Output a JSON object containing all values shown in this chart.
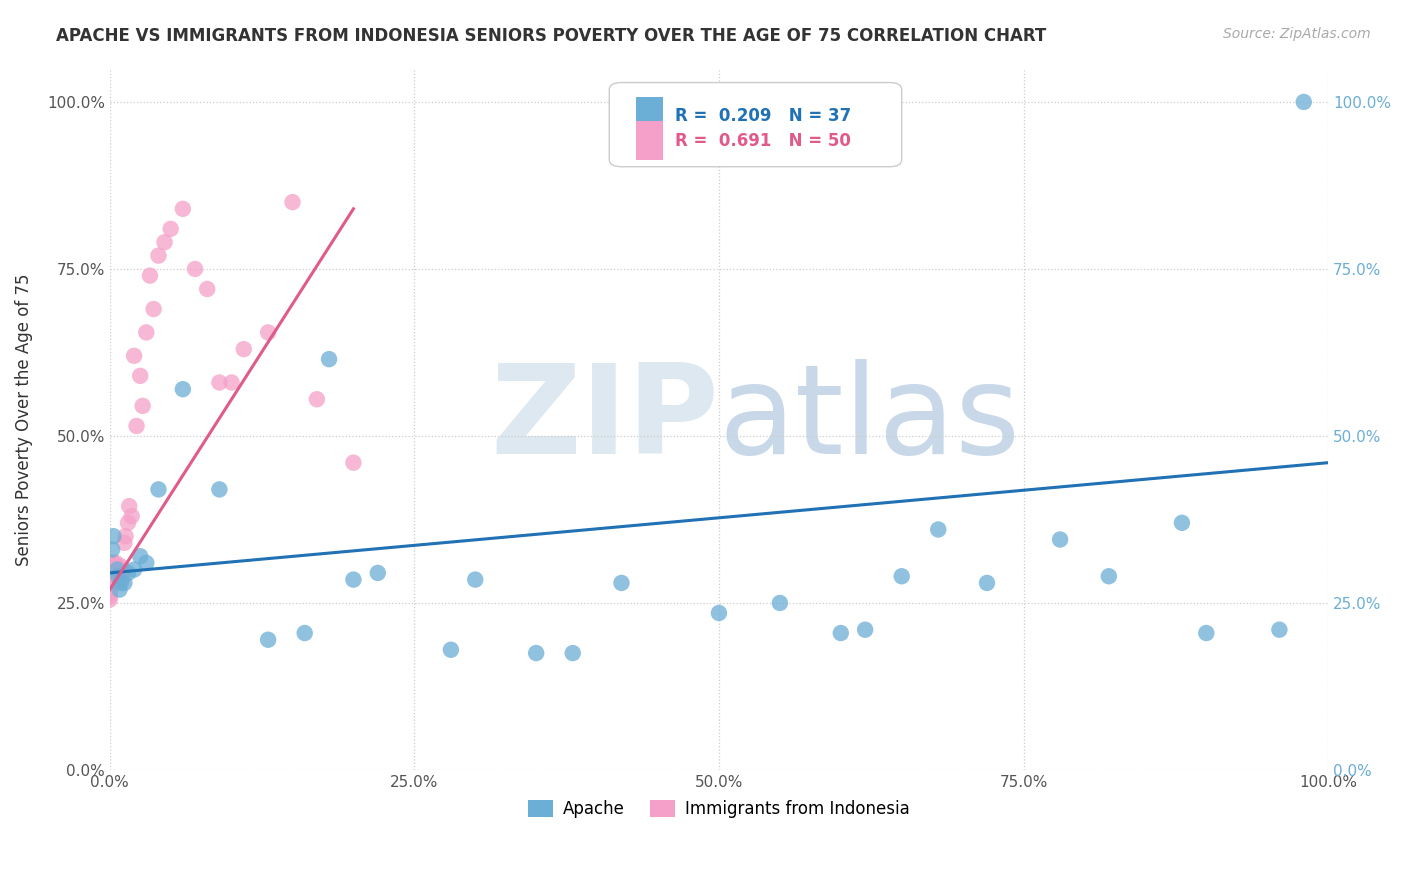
{
  "title": "APACHE VS IMMIGRANTS FROM INDONESIA SENIORS POVERTY OVER THE AGE OF 75 CORRELATION CHART",
  "source": "Source: ZipAtlas.com",
  "ylabel": "Seniors Poverty Over the Age of 75",
  "background_color": "#ffffff",
  "watermark_zip": "ZIP",
  "watermark_atlas": "atlas",
  "legend_apache_R": 0.209,
  "legend_apache_N": 37,
  "legend_indonesia_R": 0.691,
  "legend_indonesia_N": 50,
  "apache_color": "#6baed6",
  "indonesia_color": "#f4a0c8",
  "apache_line_color": "#2171b5",
  "indonesia_line_color": "#e05a8a",
  "grid_color": "#cccccc",
  "apache_points_x": [
    0.002,
    0.003,
    0.006,
    0.007,
    0.008,
    0.009,
    0.012,
    0.015,
    0.02,
    0.025,
    0.03,
    0.04,
    0.06,
    0.09,
    0.13,
    0.16,
    0.18,
    0.2,
    0.22,
    0.28,
    0.3,
    0.35,
    0.38,
    0.42,
    0.5,
    0.55,
    0.6,
    0.62,
    0.65,
    0.68,
    0.72,
    0.78,
    0.82,
    0.88,
    0.9,
    0.96,
    0.98
  ],
  "apache_points_y": [
    0.33,
    0.35,
    0.3,
    0.29,
    0.27,
    0.28,
    0.28,
    0.295,
    0.3,
    0.32,
    0.31,
    0.42,
    0.57,
    0.42,
    0.195,
    0.205,
    0.615,
    0.285,
    0.295,
    0.18,
    0.285,
    0.175,
    0.175,
    0.28,
    0.235,
    0.25,
    0.205,
    0.21,
    0.29,
    0.36,
    0.28,
    0.345,
    0.29,
    0.37,
    0.205,
    0.21,
    1.0
  ],
  "indonesia_points_x": [
    0.0,
    0.0,
    0.0,
    0.0,
    0.0,
    0.0,
    0.0,
    0.0,
    0.0,
    0.0,
    0.001,
    0.001,
    0.001,
    0.002,
    0.002,
    0.003,
    0.003,
    0.004,
    0.005,
    0.006,
    0.007,
    0.008,
    0.009,
    0.01,
    0.011,
    0.012,
    0.013,
    0.015,
    0.016,
    0.018,
    0.02,
    0.022,
    0.025,
    0.027,
    0.03,
    0.033,
    0.036,
    0.04,
    0.045,
    0.05,
    0.06,
    0.07,
    0.08,
    0.09,
    0.1,
    0.11,
    0.13,
    0.15,
    0.17,
    0.2
  ],
  "indonesia_points_y": [
    0.28,
    0.29,
    0.3,
    0.31,
    0.295,
    0.285,
    0.27,
    0.265,
    0.26,
    0.255,
    0.295,
    0.31,
    0.29,
    0.3,
    0.285,
    0.31,
    0.295,
    0.305,
    0.31,
    0.285,
    0.295,
    0.3,
    0.305,
    0.285,
    0.3,
    0.34,
    0.35,
    0.37,
    0.395,
    0.38,
    0.62,
    0.515,
    0.59,
    0.545,
    0.655,
    0.74,
    0.69,
    0.77,
    0.79,
    0.81,
    0.84,
    0.75,
    0.72,
    0.58,
    0.58,
    0.63,
    0.655,
    0.85,
    0.555,
    0.46
  ],
  "apache_line_x": [
    0.0,
    1.0
  ],
  "apache_line_y": [
    0.295,
    0.46
  ],
  "indonesia_line_x": [
    0.0,
    0.2
  ],
  "indonesia_line_y": [
    0.27,
    0.84
  ],
  "xlim": [
    0.0,
    1.0
  ],
  "ylim": [
    0.0,
    1.05
  ],
  "xticks": [
    0.0,
    0.25,
    0.5,
    0.75,
    1.0
  ],
  "xtick_labels": [
    "0.0%",
    "25.0%",
    "50.0%",
    "75.0%",
    "100.0%"
  ],
  "yticks": [
    0.0,
    0.25,
    0.5,
    0.75,
    1.0
  ],
  "ytick_labels": [
    "0.0%",
    "25.0%",
    "50.0%",
    "75.0%",
    "100.0%"
  ]
}
